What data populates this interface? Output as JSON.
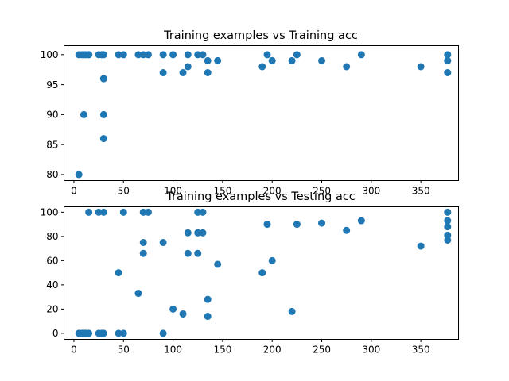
{
  "chart_data": [
    {
      "type": "scatter",
      "title": "Training examples vs Training acc",
      "xlabel": "",
      "ylabel": "",
      "xlim": [
        -10,
        388
      ],
      "ylim": [
        79,
        101.5
      ],
      "xticks": [
        0,
        50,
        100,
        150,
        200,
        250,
        300,
        350
      ],
      "yticks": [
        80,
        85,
        90,
        95,
        100
      ],
      "grid": false,
      "color": "#1f77b4",
      "points": [
        [
          5,
          80
        ],
        [
          5,
          100
        ],
        [
          8,
          100
        ],
        [
          10,
          90
        ],
        [
          10,
          100
        ],
        [
          12,
          100
        ],
        [
          15,
          100
        ],
        [
          15,
          100
        ],
        [
          25,
          100
        ],
        [
          28,
          100
        ],
        [
          30,
          96
        ],
        [
          30,
          96
        ],
        [
          30,
          90
        ],
        [
          30,
          86
        ],
        [
          30,
          100
        ],
        [
          45,
          100
        ],
        [
          50,
          100
        ],
        [
          65,
          100
        ],
        [
          70,
          100
        ],
        [
          75,
          100
        ],
        [
          90,
          100
        ],
        [
          90,
          97
        ],
        [
          100,
          100
        ],
        [
          110,
          97
        ],
        [
          115,
          100
        ],
        [
          115,
          98
        ],
        [
          125,
          100
        ],
        [
          130,
          100
        ],
        [
          135,
          99
        ],
        [
          135,
          97
        ],
        [
          145,
          99
        ],
        [
          190,
          98
        ],
        [
          195,
          100
        ],
        [
          200,
          99
        ],
        [
          220,
          99
        ],
        [
          225,
          100
        ],
        [
          250,
          99
        ],
        [
          275,
          98
        ],
        [
          290,
          100
        ],
        [
          350,
          98
        ],
        [
          377,
          100
        ],
        [
          377,
          99
        ],
        [
          377,
          99
        ],
        [
          377,
          97
        ]
      ]
    },
    {
      "type": "scatter",
      "title": "Training examples vs Testing acc",
      "xlabel": "",
      "ylabel": "",
      "xlim": [
        -10,
        388
      ],
      "ylim": [
        -5,
        104.5
      ],
      "xticks": [
        0,
        50,
        100,
        150,
        200,
        250,
        300,
        350
      ],
      "yticks": [
        0,
        20,
        40,
        60,
        80,
        100
      ],
      "grid": false,
      "color": "#1f77b4",
      "points": [
        [
          5,
          0
        ],
        [
          8,
          0
        ],
        [
          10,
          0
        ],
        [
          12,
          0
        ],
        [
          15,
          0
        ],
        [
          15,
          100
        ],
        [
          25,
          0
        ],
        [
          25,
          100
        ],
        [
          28,
          0
        ],
        [
          30,
          0
        ],
        [
          30,
          100
        ],
        [
          45,
          0
        ],
        [
          45,
          50
        ],
        [
          50,
          0
        ],
        [
          50,
          100
        ],
        [
          65,
          33
        ],
        [
          70,
          100
        ],
        [
          70,
          75
        ],
        [
          70,
          66
        ],
        [
          75,
          100
        ],
        [
          90,
          0
        ],
        [
          90,
          75
        ],
        [
          100,
          20
        ],
        [
          110,
          16
        ],
        [
          115,
          83
        ],
        [
          115,
          66
        ],
        [
          125,
          100
        ],
        [
          125,
          83
        ],
        [
          125,
          66
        ],
        [
          130,
          100
        ],
        [
          130,
          83
        ],
        [
          135,
          28
        ],
        [
          135,
          14
        ],
        [
          145,
          57
        ],
        [
          190,
          50
        ],
        [
          195,
          90
        ],
        [
          200,
          60
        ],
        [
          220,
          18
        ],
        [
          225,
          90
        ],
        [
          250,
          91
        ],
        [
          275,
          85
        ],
        [
          290,
          93
        ],
        [
          350,
          72
        ],
        [
          377,
          100
        ],
        [
          377,
          93
        ],
        [
          377,
          88
        ],
        [
          377,
          81
        ],
        [
          377,
          77
        ]
      ]
    }
  ]
}
